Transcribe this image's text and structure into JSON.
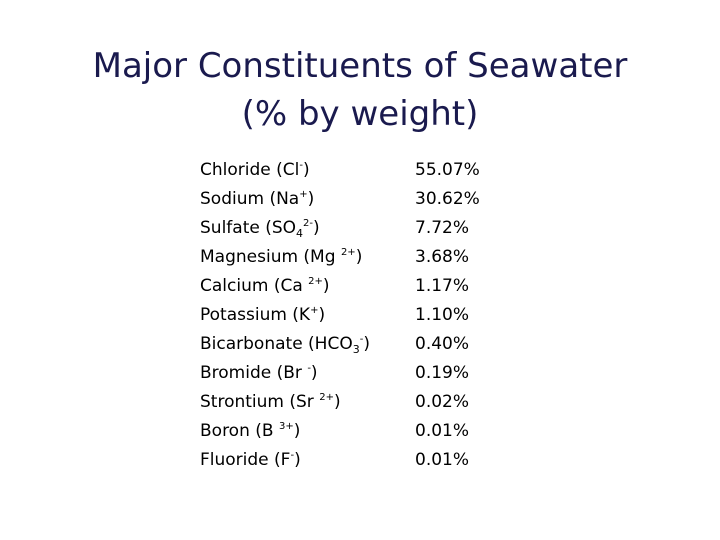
{
  "title": [
    "Major Constituents of Seawater",
    "(% by weight)"
  ],
  "rows": [
    {
      "name": [
        {
          "text": "Chloride (Cl"
        },
        {
          "sup": "-"
        },
        {
          "text": ")"
        }
      ],
      "value": "55.07%"
    },
    {
      "name": [
        {
          "text": "Sodium (Na"
        },
        {
          "sup": "+"
        },
        {
          "text": ")"
        }
      ],
      "value": "30.62%"
    },
    {
      "name": [
        {
          "text": "Sulfate (SO"
        },
        {
          "sub": "4"
        },
        {
          "sup": "2-"
        },
        {
          "text": ")"
        }
      ],
      "value": "7.72%"
    },
    {
      "name": [
        {
          "text": "Magnesium (Mg "
        },
        {
          "sup": "2+"
        },
        {
          "text": ")"
        }
      ],
      "value": "3.68%"
    },
    {
      "name": [
        {
          "text": "Calcium (Ca "
        },
        {
          "sup": "2+"
        },
        {
          "text": ")"
        }
      ],
      "value": "1.17%"
    },
    {
      "name": [
        {
          "text": "Potassium (K"
        },
        {
          "sup": "+"
        },
        {
          "text": ")"
        }
      ],
      "value": "1.10%"
    },
    {
      "name": [
        {
          "text": "Bicarbonate (HCO"
        },
        {
          "sub": "3"
        },
        {
          "sup": "-"
        },
        {
          "text": ")"
        }
      ],
      "value": "0.40%"
    },
    {
      "name": [
        {
          "text": "Bromide (Br "
        },
        {
          "sup": "-"
        },
        {
          "text": ")"
        }
      ],
      "value": "0.19%"
    },
    {
      "name": [
        {
          "text": "Strontium (Sr "
        },
        {
          "sup": "2+"
        },
        {
          "text": ")"
        }
      ],
      "value": "0.02%"
    },
    {
      "name": [
        {
          "text": "Boron (B "
        },
        {
          "sup": "3+"
        },
        {
          "text": ")"
        }
      ],
      "value": "0.01%"
    },
    {
      "name": [
        {
          "text": "Fluoride (F"
        },
        {
          "sup": "-"
        },
        {
          "text": ")"
        }
      ],
      "value": "0.01%"
    }
  ]
}
